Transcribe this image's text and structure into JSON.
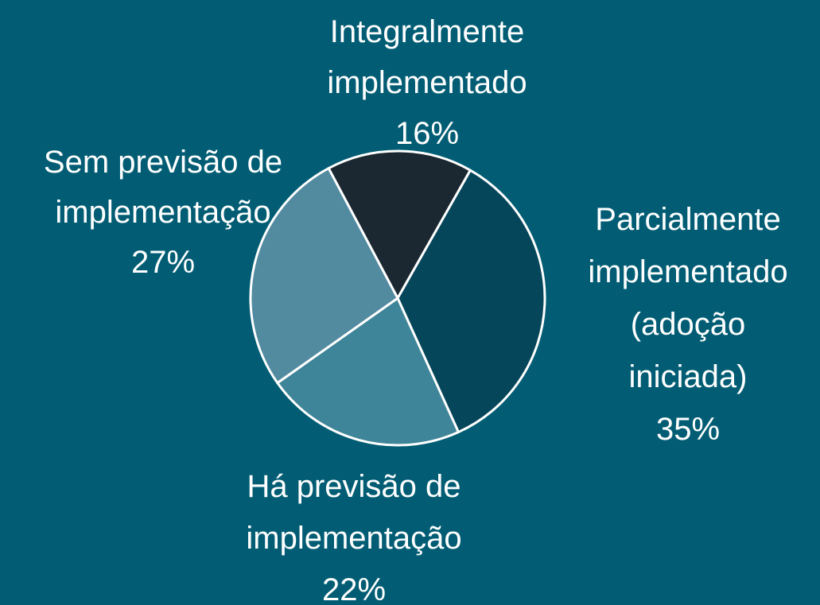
{
  "chart_data": {
    "type": "pie",
    "categories": [
      "Integralmente implementado",
      "Parcialmente implementado (adoção iniciada)",
      "Há previsão de implementação",
      "Sem previsão de implementação"
    ],
    "values": [
      16,
      35,
      22,
      27
    ],
    "value_labels": [
      "16%",
      "35%",
      "22%",
      "27%"
    ],
    "colors": [
      "#1b2831",
      "#06465a",
      "#3e8599",
      "#528aa0"
    ]
  }
}
